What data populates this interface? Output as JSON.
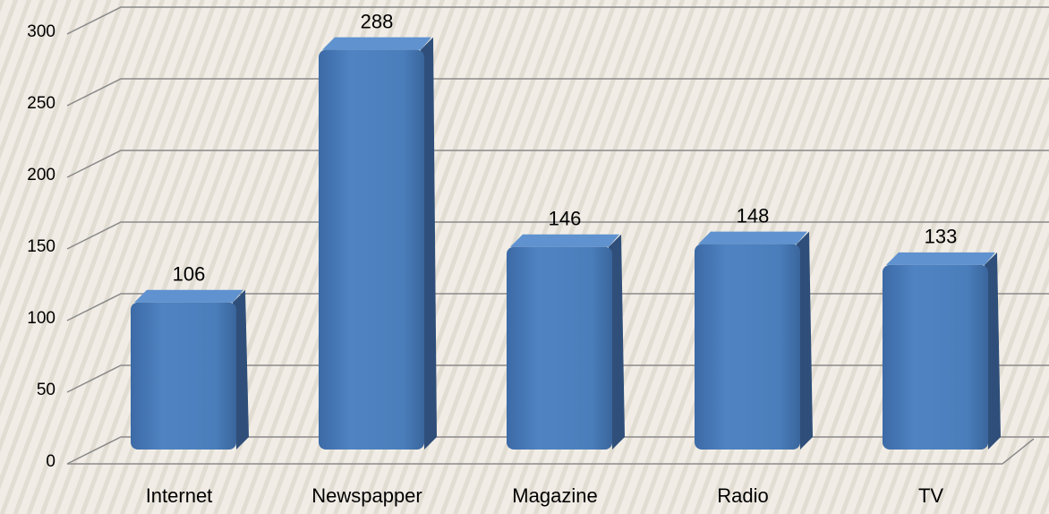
{
  "chart_data": {
    "type": "bar3d",
    "categories": [
      "Internet",
      "Newspapper",
      "Magazine",
      "Radio",
      "TV"
    ],
    "values": [
      106,
      288,
      146,
      148,
      133
    ],
    "color": "#4a7ebb",
    "ylim": [
      0,
      300
    ],
    "yticks": [
      0,
      50,
      100,
      150,
      200,
      250,
      300
    ],
    "grid": true
  }
}
